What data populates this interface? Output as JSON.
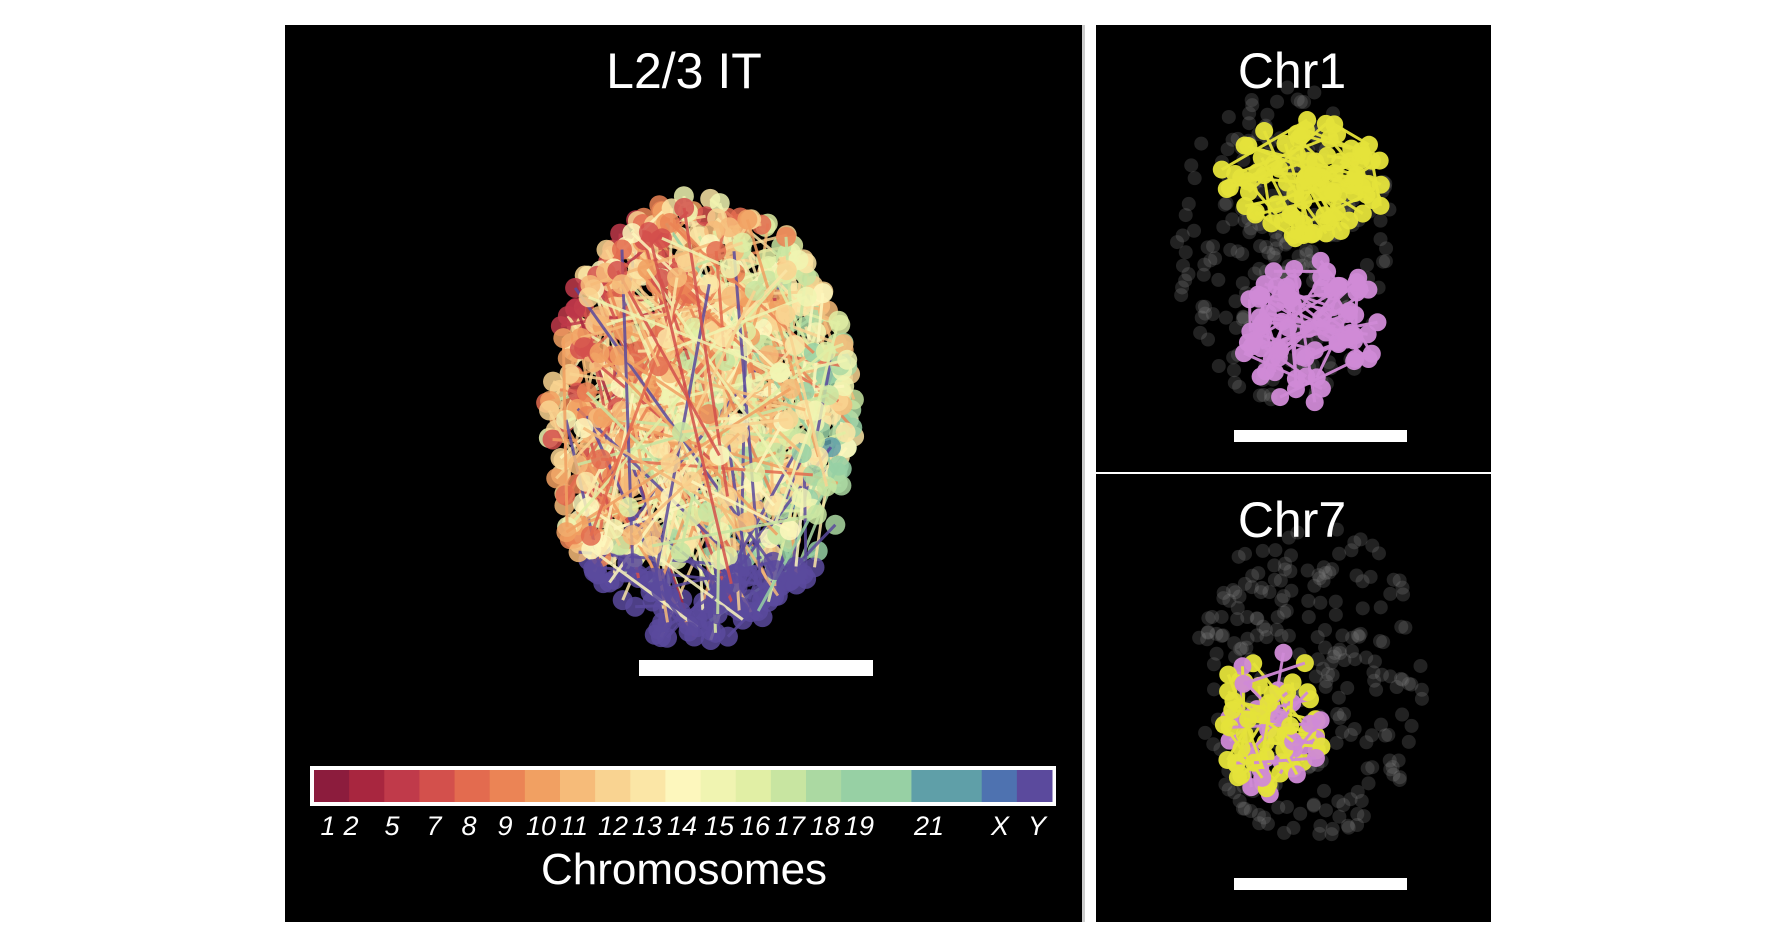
{
  "main_panel": {
    "title": "L2/3 IT",
    "colorbar": {
      "label": "Chromosomes",
      "tick_labels": [
        "1",
        "2",
        "5",
        "7",
        "8",
        "9",
        "10",
        "11",
        "12",
        "13",
        "14",
        "15",
        "16",
        "17",
        "18",
        "19",
        "21",
        "X",
        "Y"
      ],
      "colors": [
        "#8c1c3d",
        "#a8263f",
        "#c03a4a",
        "#d3504c",
        "#e36b4f",
        "#eb8455",
        "#f1a062",
        "#f6bb79",
        "#f9d391",
        "#fbe6a6",
        "#fdf7bd",
        "#f0f4b1",
        "#e1efa5",
        "#c8e5a1",
        "#abd9a2",
        "#97d0a4",
        "#5f9fa8",
        "#4e72b0",
        "#5b4a9d"
      ]
    }
  },
  "side_panels": [
    {
      "title": "Chr1"
    },
    {
      "title": "Chr7"
    }
  ]
}
